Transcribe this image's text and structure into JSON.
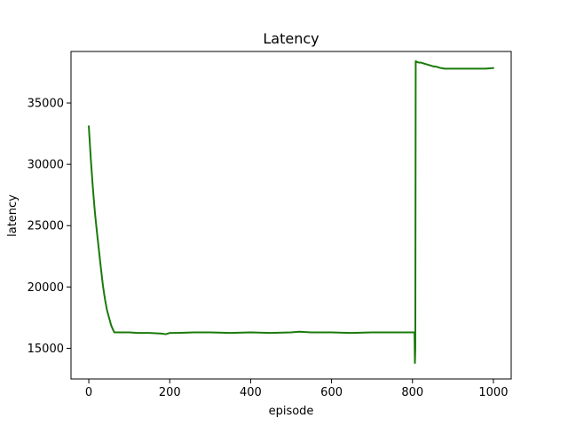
{
  "chart_data": {
    "type": "line",
    "title": "Latency",
    "xlabel": "episode",
    "ylabel": "latency",
    "xlim": [
      -44,
      1044
    ],
    "ylim": [
      12500,
      39200
    ],
    "xticks": [
      0,
      200,
      400,
      600,
      800,
      1000
    ],
    "xtick_labels": [
      "0",
      "200",
      "400",
      "600",
      "800",
      "1000"
    ],
    "yticks": [
      15000,
      20000,
      25000,
      30000,
      35000
    ],
    "ytick_labels": [
      "15000",
      "20000",
      "25000",
      "30000",
      "35000"
    ],
    "grid": false,
    "legend": "none",
    "series_color": "#1a7a0a",
    "series": [
      {
        "x": [
          0,
          5,
          10,
          15,
          20,
          25,
          30,
          35,
          40,
          45,
          50,
          55,
          60,
          63,
          70,
          80,
          100,
          120,
          150,
          180,
          190,
          200,
          220,
          260,
          300,
          350,
          400,
          450,
          500,
          520,
          550,
          600,
          650,
          700,
          750,
          790,
          800,
          805,
          806,
          807,
          808,
          809,
          810,
          815,
          820,
          830,
          840,
          850,
          860,
          870,
          880,
          890,
          900,
          920,
          940,
          960,
          980,
          1000
        ],
        "y": [
          33100,
          30400,
          28100,
          26100,
          24500,
          23000,
          21500,
          20100,
          19000,
          18100,
          17500,
          16900,
          16500,
          16300,
          16300,
          16300,
          16300,
          16250,
          16250,
          16200,
          16150,
          16250,
          16250,
          16300,
          16300,
          16250,
          16300,
          16250,
          16300,
          16350,
          16300,
          16300,
          16250,
          16300,
          16300,
          16300,
          16300,
          16300,
          13800,
          15000,
          38400,
          38400,
          38350,
          38300,
          38300,
          38200,
          38100,
          38000,
          37950,
          37850,
          37800,
          37800,
          37800,
          37800,
          37800,
          37800,
          37800,
          37850
        ]
      }
    ]
  }
}
